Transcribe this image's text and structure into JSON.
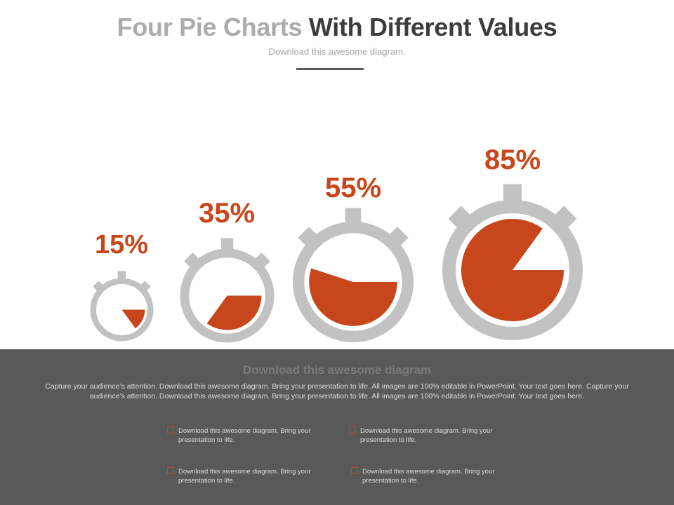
{
  "header": {
    "title_light": "Four Pie Charts",
    "title_dark": "With Different Values",
    "subtitle": "Download this awesome diagram."
  },
  "colors": {
    "accent": "#c8461b",
    "timer_gray": "#c2c2c2",
    "panel_bg": "#595959"
  },
  "chart_data": {
    "type": "pie",
    "categories": [
      "15%",
      "35%",
      "55%",
      "85%"
    ],
    "values": [
      15,
      35,
      55,
      85
    ]
  },
  "footer": {
    "heading": "Download this awesome diagram",
    "body": "Capture your audience’s attention. Download this  awesome diagram. Bring your presentation to life. All images are 100% editable in PowerPoint. Your text  goes here. Capture your audience’s attention. Download this  awesome diagram. Bring your presentation to life. All images are 100% editable in PowerPoint. Your text  goes here.",
    "bullets": [
      "Download this awesome diagram. Bring your presentation to life.",
      "Download this awesome diagram. Bring your presentation to life.",
      "Download this awesome diagram. Bring your presentation to life.",
      "Download this awesome diagram. Bring your presentation to life."
    ]
  }
}
